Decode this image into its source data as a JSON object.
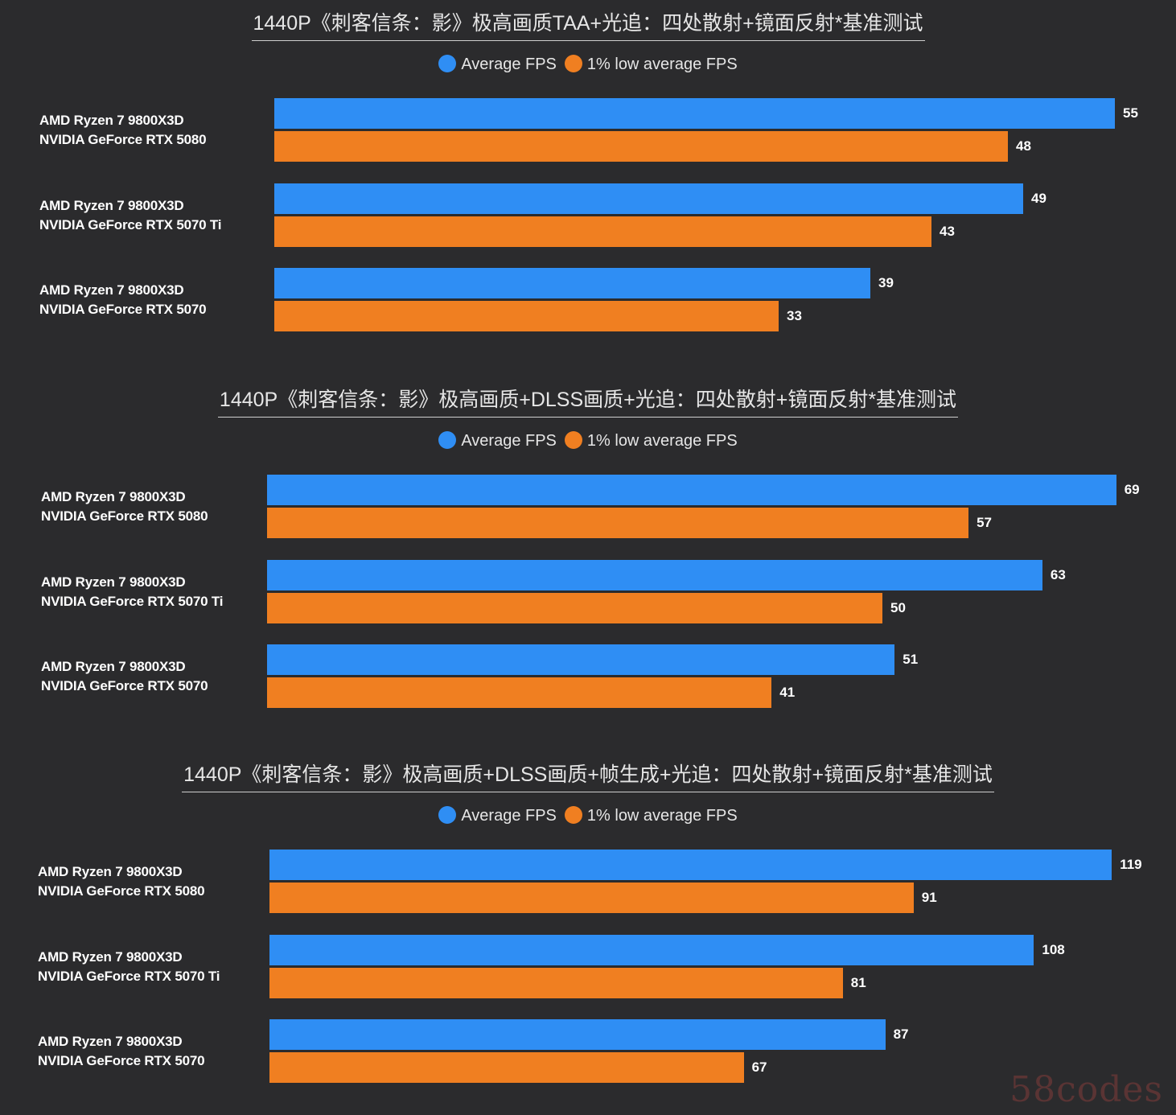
{
  "colors": {
    "average": "#2f8ef4",
    "low": "#f07f21",
    "background": "#2b2b2d"
  },
  "chart_data": [
    {
      "type": "bar",
      "orientation": "horizontal",
      "title": "1440P《刺客信条：影》极高画质TAA+光追：四处散射+镜面反射*基准测试",
      "legend": {
        "position": "top-center"
      },
      "categories": [
        [
          "AMD Ryzen 7 9800X3D",
          "NVIDIA GeForce RTX 5080"
        ],
        [
          "AMD Ryzen 7 9800X3D",
          "NVIDIA GeForce RTX 5070 Ti"
        ],
        [
          "AMD Ryzen 7 9800X3D",
          "NVIDIA GeForce RTX 5070"
        ]
      ],
      "series": [
        {
          "name": "Average FPS",
          "values": [
            55,
            49,
            39
          ]
        },
        {
          "name": "1% low average FPS",
          "values": [
            48,
            43,
            33
          ]
        }
      ]
    },
    {
      "type": "bar",
      "orientation": "horizontal",
      "title": "1440P《刺客信条：影》极高画质+DLSS画质+光追：四处散射+镜面反射*基准测试",
      "legend": {
        "position": "top-center"
      },
      "categories": [
        [
          "AMD Ryzen 7 9800X3D",
          "NVIDIA GeForce RTX 5080"
        ],
        [
          "AMD Ryzen 7 9800X3D",
          "NVIDIA GeForce RTX 5070 Ti"
        ],
        [
          "AMD Ryzen 7 9800X3D",
          "NVIDIA GeForce RTX 5070"
        ]
      ],
      "series": [
        {
          "name": "Average FPS",
          "values": [
            69,
            63,
            51
          ]
        },
        {
          "name": "1% low average FPS",
          "values": [
            57,
            50,
            41
          ]
        }
      ]
    },
    {
      "type": "bar",
      "orientation": "horizontal",
      "title": "1440P《刺客信条：影》极高画质+DLSS画质+帧生成+光追：四处散射+镜面反射*基准测试",
      "legend": {
        "position": "top-center"
      },
      "categories": [
        [
          "AMD Ryzen 7 9800X3D",
          "NVIDIA GeForce RTX 5080"
        ],
        [
          "AMD Ryzen 7 9800X3D",
          "NVIDIA GeForce RTX 5070 Ti"
        ],
        [
          "AMD Ryzen 7 9800X3D",
          "NVIDIA GeForce RTX 5070"
        ]
      ],
      "series": [
        {
          "name": "Average FPS",
          "values": [
            119,
            108,
            87
          ]
        },
        {
          "name": "1% low average FPS",
          "values": [
            91,
            81,
            67
          ]
        }
      ]
    }
  ],
  "watermark": "58codes"
}
